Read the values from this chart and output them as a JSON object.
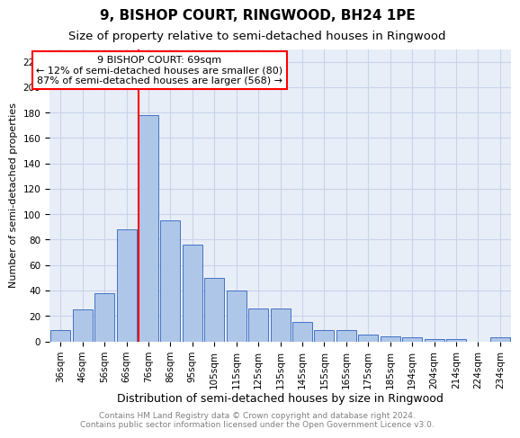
{
  "title": "9, BISHOP COURT, RINGWOOD, BH24 1PE",
  "subtitle": "Size of property relative to semi-detached houses in Ringwood",
  "xlabel": "Distribution of semi-detached houses by size in Ringwood",
  "ylabel": "Number of semi-detached properties",
  "bar_labels": [
    "36sqm",
    "46sqm",
    "56sqm",
    "66sqm",
    "76sqm",
    "86sqm",
    "95sqm",
    "105sqm",
    "115sqm",
    "125sqm",
    "135sqm",
    "145sqm",
    "155sqm",
    "165sqm",
    "175sqm",
    "185sqm",
    "194sqm",
    "204sqm",
    "214sqm",
    "224sqm",
    "234sqm"
  ],
  "bar_heights": [
    9,
    25,
    38,
    88,
    178,
    95,
    76,
    50,
    40,
    26,
    26,
    15,
    9,
    9,
    5,
    4,
    3,
    2,
    2,
    0,
    3
  ],
  "bar_color": "#aec6e8",
  "bar_edgecolor": "#4472c4",
  "grid_color": "#c8d4e8",
  "background_color": "#e8eef8",
  "vline_color": "red",
  "vline_bar_index": 3.55,
  "annotation_line1": "9 BISHOP COURT: 69sqm",
  "annotation_line2": "← 12% of semi-detached houses are smaller (80)",
  "annotation_line3": "87% of semi-detached houses are larger (568) →",
  "annotation_box_color": "white",
  "annotation_box_edgecolor": "red",
  "ylim": [
    0,
    230
  ],
  "yticks": [
    0,
    20,
    40,
    60,
    80,
    100,
    120,
    140,
    160,
    180,
    200,
    220
  ],
  "title_fontsize": 11,
  "subtitle_fontsize": 9.5,
  "ylabel_fontsize": 8,
  "xlabel_fontsize": 9,
  "tick_fontsize": 7.5,
  "annotation_fontsize": 8,
  "footer_fontsize": 6.5,
  "footer_text": "Contains HM Land Registry data © Crown copyright and database right 2024.\nContains public sector information licensed under the Open Government Licence v3.0."
}
